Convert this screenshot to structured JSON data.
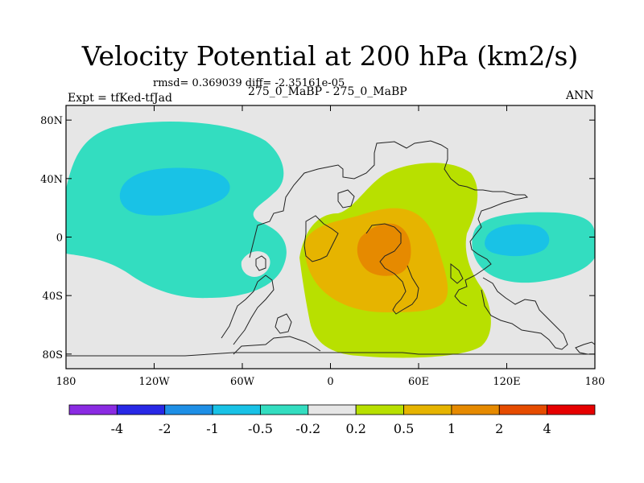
{
  "chart_data": {
    "type": "heatmap",
    "title": "Velocity Potential at 200 hPa (km2/s)",
    "subtitle_left": "Expt = tfKed-tfJad",
    "subtitle_center": "275_0_MaBP - 275_0_MaBP",
    "subtitle_right": "ANN",
    "stats": "rmsd= 0.369039 diff= -2.35161e-05",
    "x_ticks": [
      "180",
      "120W",
      "60W",
      "0",
      "60E",
      "120E",
      "180"
    ],
    "y_ticks": [
      "80N",
      "40N",
      "0",
      "40S",
      "80S"
    ],
    "xlim": [
      -180,
      180
    ],
    "ylim": [
      -90,
      90
    ],
    "grid": false,
    "colorbar": {
      "levels": [
        "-4",
        "-2",
        "-1",
        "-0.5",
        "-0.2",
        "0.2",
        "0.5",
        "1",
        "2",
        "4"
      ],
      "colors": [
        "#8a2be2",
        "#2828e6",
        "#1e8fe6",
        "#19c2e6",
        "#33ddc0",
        "#e6e6e6",
        "#b8e000",
        "#e6b400",
        "#e68a00",
        "#e64c00",
        "#e60000"
      ]
    }
  }
}
